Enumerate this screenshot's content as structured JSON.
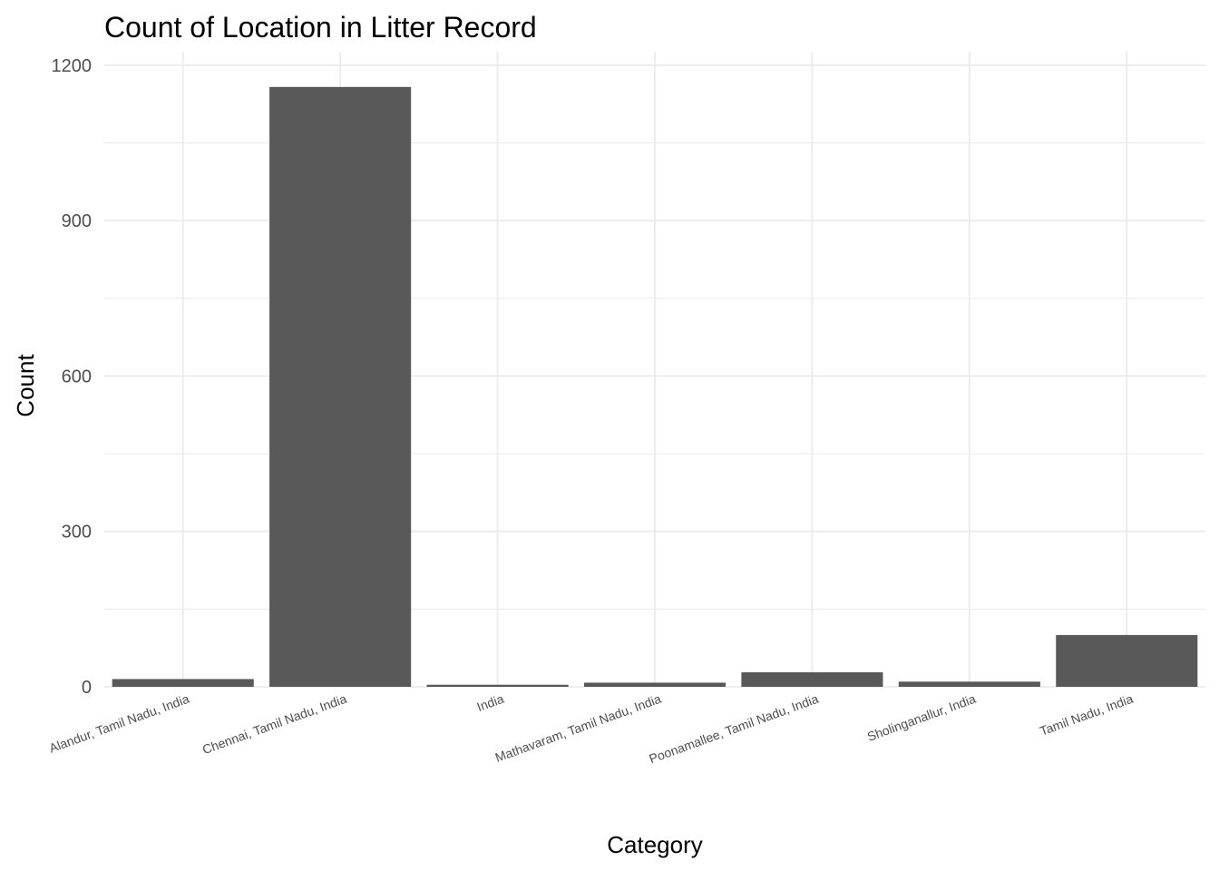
{
  "chart_data": {
    "type": "bar",
    "title": "Count of Location in Litter Record",
    "xlabel": "Category",
    "ylabel": "Count",
    "categories": [
      "Alandur, Tamil Nadu, India",
      "Chennai, Tamil Nadu, India",
      "India",
      "Mathavaram, Tamil Nadu, India",
      "Poonamallee, Tamil Nadu, India",
      "Sholinganallur, India",
      "Tamil Nadu, India"
    ],
    "values": [
      15,
      1158,
      4,
      8,
      28,
      10,
      100
    ],
    "ylim": [
      0,
      1200
    ],
    "yticks": [
      0,
      300,
      600,
      900,
      1200
    ],
    "grid": true,
    "legend": "none",
    "colors": {
      "bar": "#595959",
      "grid": "#ebebeb",
      "text": "#4d4d4d"
    }
  }
}
